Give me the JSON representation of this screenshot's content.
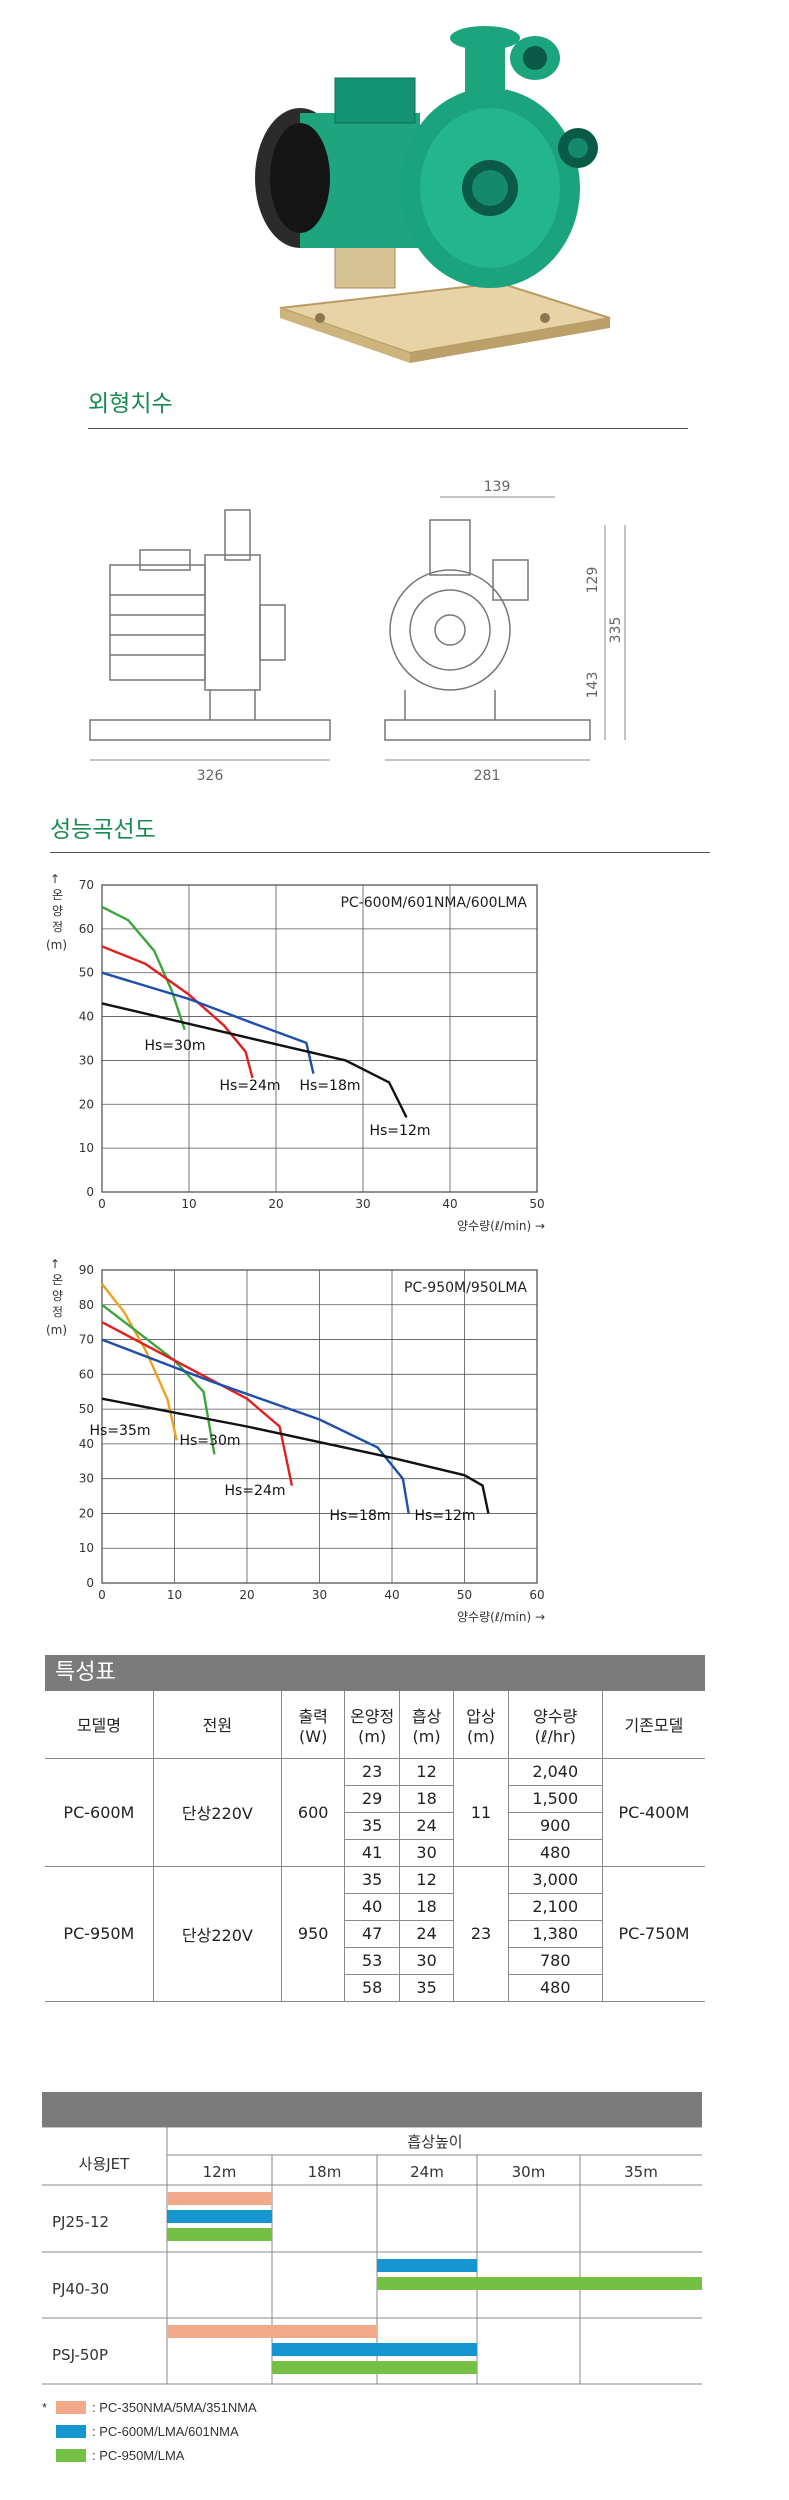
{
  "sections": {
    "dimensions_title": "외형치수",
    "curve_title": "성능곡선도",
    "spec_title": "특성표"
  },
  "dimensions": {
    "width_side": "326",
    "width_front": "281",
    "top_width": "139",
    "height_upper": "129",
    "height_lower": "143",
    "height_total": "335"
  },
  "chart_data": [
    {
      "type": "line",
      "title": "PC-600M/601NMA/600LMA",
      "ylabel": "↑ 온양정 (m)",
      "xlabel": "양수량(ℓ/min) →",
      "xlim": [
        0,
        50
      ],
      "ylim": [
        0,
        70
      ],
      "xticks": [
        0,
        10,
        20,
        30,
        40,
        50
      ],
      "yticks": [
        0,
        10,
        20,
        30,
        40,
        50,
        60,
        70
      ],
      "grid": true,
      "series": [
        {
          "name": "Hs=30m",
          "color": "#3aa63a",
          "x": [
            0,
            3,
            6,
            8,
            9.5
          ],
          "y": [
            65,
            62,
            55,
            46,
            37
          ]
        },
        {
          "name": "Hs=24m",
          "color": "#e02020",
          "x": [
            0,
            5,
            10,
            14,
            16.5,
            17.3
          ],
          "y": [
            56,
            52,
            45,
            38,
            32,
            26
          ]
        },
        {
          "name": "Hs=18m",
          "color": "#1f4fa8",
          "x": [
            0,
            10,
            18,
            23.5,
            24.3
          ],
          "y": [
            50,
            44,
            38,
            34,
            27
          ]
        },
        {
          "name": "Hs=12m",
          "color": "#111111",
          "x": [
            0,
            15,
            28,
            33,
            35
          ],
          "y": [
            43,
            36,
            30,
            25,
            17
          ]
        }
      ]
    },
    {
      "type": "line",
      "title": "PC-950M/950LMA",
      "ylabel": "↑ 온양정 (m)",
      "xlabel": "양수량(ℓ/min) →",
      "xlim": [
        0,
        60
      ],
      "ylim": [
        0,
        90
      ],
      "xticks": [
        0,
        10,
        20,
        30,
        40,
        50,
        60
      ],
      "yticks": [
        0,
        10,
        20,
        30,
        40,
        50,
        60,
        70,
        80,
        90
      ],
      "grid": true,
      "series": [
        {
          "name": "Hs=35m",
          "color": "#f0a020",
          "x": [
            0,
            3,
            6,
            9,
            10.3
          ],
          "y": [
            86,
            78,
            67,
            53,
            41
          ]
        },
        {
          "name": "Hs=30m",
          "color": "#3aa63a",
          "x": [
            0,
            5,
            10,
            14,
            15.5
          ],
          "y": [
            80,
            72,
            64,
            55,
            37
          ]
        },
        {
          "name": "Hs=24m",
          "color": "#e02020",
          "x": [
            0,
            10,
            20,
            24.5,
            26.2
          ],
          "y": [
            75,
            64,
            53,
            45,
            28
          ]
        },
        {
          "name": "Hs=18m",
          "color": "#1f4fa8",
          "x": [
            0,
            15,
            30,
            38,
            41.5,
            42.3
          ],
          "y": [
            70,
            58,
            47,
            39,
            30,
            20
          ]
        },
        {
          "name": "Hs=12m",
          "color": "#111111",
          "x": [
            0,
            20,
            40,
            50,
            52.5,
            53.3
          ],
          "y": [
            53,
            45,
            36,
            31,
            28,
            20
          ]
        }
      ]
    }
  ],
  "spec_table": {
    "headers": [
      "모델명",
      "전원",
      "출력\n(W)",
      "온양정\n(m)",
      "흡상\n(m)",
      "압상\n(m)",
      "양수량\n(ℓ/hr)",
      "기존모델"
    ],
    "models": [
      {
        "name": "PC-600M",
        "power": "단상220V",
        "output": "600",
        "push": "11",
        "old": "PC-400M",
        "rows": [
          [
            "23",
            "12",
            "2,040"
          ],
          [
            "29",
            "18",
            "1,500"
          ],
          [
            "35",
            "24",
            "900"
          ],
          [
            "41",
            "30",
            "480"
          ]
        ]
      },
      {
        "name": "PC-950M",
        "power": "단상220V",
        "output": "950",
        "push": "23",
        "old": "PC-750M",
        "rows": [
          [
            "35",
            "12",
            "3,000"
          ],
          [
            "40",
            "18",
            "2,100"
          ],
          [
            "47",
            "24",
            "1,380"
          ],
          [
            "53",
            "30",
            "780"
          ],
          [
            "58",
            "35",
            "480"
          ]
        ]
      }
    ]
  },
  "jet_table": {
    "col_header": "사용JET",
    "group_header": "흡상높이",
    "depths": [
      "12m",
      "18m",
      "24m",
      "30m",
      "35m"
    ],
    "jets": [
      "PJ25-12",
      "PJ40-30",
      "PSJ-50P"
    ],
    "bars": [
      {
        "jet": 0,
        "series": 0,
        "from_col": 0,
        "to_col": 1
      },
      {
        "jet": 0,
        "series": 1,
        "from_col": 0,
        "to_col": 1
      },
      {
        "jet": 0,
        "series": 2,
        "from_col": 0,
        "to_col": 1
      },
      {
        "jet": 1,
        "series": 1,
        "from_col": 2,
        "to_col": 3
      },
      {
        "jet": 1,
        "series": 2,
        "from_col": 2,
        "to_col": 5
      },
      {
        "jet": 2,
        "series": 0,
        "from_col": 0,
        "to_col": 2
      },
      {
        "jet": 2,
        "series": 1,
        "from_col": 1,
        "to_col": 3
      },
      {
        "jet": 2,
        "series": 2,
        "from_col": 1,
        "to_col": 3
      }
    ],
    "legend_star": "*",
    "legend": [
      {
        "color": "#f2a98a",
        "label": ": PC-350NMA/5MA/351NMA"
      },
      {
        "color": "#1596d0",
        "label": ": PC-600M/LMA/601NMA"
      },
      {
        "color": "#74c045",
        "label": ": PC-950M/LMA"
      }
    ]
  }
}
